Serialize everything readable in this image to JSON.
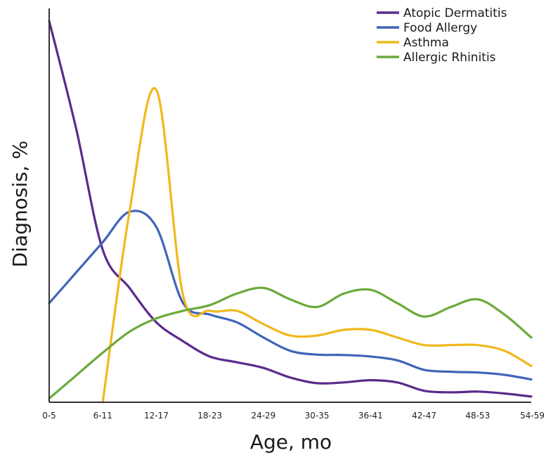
{
  "chart_data": {
    "type": "line",
    "title": "",
    "xlabel": "Age, mo",
    "ylabel": "Diagnosis, %",
    "categories": [
      "0-5",
      "6-11",
      "12-17",
      "18-23",
      "24-29",
      "30-35",
      "36-41",
      "42-47",
      "48-53",
      "54-59"
    ],
    "ylim": [
      0,
      100
    ],
    "grid": false,
    "y_ticks_shown": false,
    "legend_position": "top-right",
    "series": [
      {
        "name": "Atopic Dermatitis",
        "color": "#5b2a8c",
        "x": [
          0,
          0.5,
          1,
          1.5,
          2,
          2.5,
          3,
          3.5,
          4,
          4.5,
          5,
          5.5,
          6,
          6.5,
          7,
          7.5,
          8,
          8.5,
          9
        ],
        "y": [
          100,
          72,
          40,
          30,
          21,
          16,
          12,
          10.5,
          9,
          6.5,
          5,
          5.2,
          5.8,
          5.2,
          3,
          2.6,
          2.8,
          2.3,
          1.5
        ]
      },
      {
        "name": "Food Allergy",
        "color": "#3f64b8",
        "x": [
          0,
          0.5,
          1,
          1.5,
          2,
          2.5,
          3,
          3.5,
          4,
          4.5,
          5,
          5.5,
          6,
          6.5,
          7,
          7.5,
          8,
          8.5,
          9
        ],
        "y": [
          26,
          34,
          42,
          50,
          46,
          26,
          23,
          21,
          17,
          13.5,
          12.5,
          12.4,
          12,
          11,
          8.5,
          8,
          7.8,
          7.2,
          6
        ]
      },
      {
        "name": "Asthma",
        "color": "#f0b81c",
        "x": [
          1,
          1.5,
          2,
          2.5,
          3,
          3.5,
          4,
          4.5,
          5,
          5.5,
          6,
          6.5,
          7,
          7.5,
          8,
          8.5,
          9
        ],
        "y": [
          0,
          50,
          82,
          28,
          24,
          24,
          20.5,
          17.5,
          17.5,
          19,
          19,
          17,
          15,
          15,
          15,
          13.5,
          9.5
        ]
      },
      {
        "name": "Allergic Rhinitis",
        "color": "#6aaa3a",
        "x": [
          0,
          0.5,
          1,
          1.5,
          2,
          2.5,
          3,
          3.5,
          4,
          4.5,
          5,
          5.5,
          6,
          6.5,
          7,
          7.5,
          8,
          8.5,
          9
        ],
        "y": [
          1,
          7,
          13,
          18.5,
          22,
          24,
          25.5,
          28.5,
          30,
          27,
          25,
          28.5,
          29.5,
          26,
          22.5,
          25,
          27,
          23,
          17
        ]
      }
    ]
  }
}
